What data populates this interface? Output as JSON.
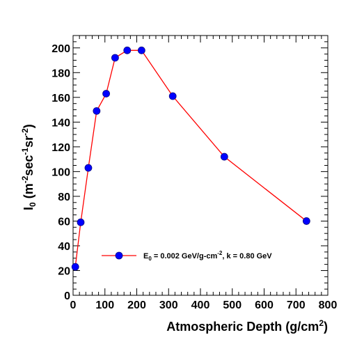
{
  "chart_data": {
    "type": "line",
    "xlabel": {
      "main": "Atmospheric Depth (g/cm",
      "sup": "2",
      "tail": ")"
    },
    "ylabel": {
      "base": "I",
      "sub": "0",
      "rest": " (m",
      "sup1": "-2",
      "mid1": "sec",
      "sup2": "-1",
      "mid2": "sr",
      "sup3": "-2",
      "end": ")"
    },
    "xlim": [
      0,
      800
    ],
    "ylim": [
      0,
      210
    ],
    "x_ticks": [
      0,
      100,
      200,
      300,
      400,
      500,
      600,
      700,
      800
    ],
    "y_ticks": [
      0,
      20,
      40,
      60,
      80,
      100,
      120,
      140,
      160,
      180,
      200
    ],
    "x_tick_labels": [
      "0",
      "100",
      "200",
      "300",
      "400",
      "500",
      "600",
      "700",
      "800"
    ],
    "y_tick_labels": [
      "0",
      "20",
      "40",
      "60",
      "80",
      "100",
      "120",
      "140",
      "160",
      "180",
      "200"
    ],
    "grid": false,
    "legend_position": "lower-center",
    "series": [
      {
        "legend": {
          "a": "E",
          "sub": "0",
          "b": " = 0.002 GeV/g-cm",
          "sup": "-2",
          "c": ", k = 0.80 GeV"
        },
        "line_color": "#ff0000",
        "marker_color": "#0000ff",
        "x": [
          7,
          24,
          48,
          74,
          104,
          132,
          170,
          215,
          313,
          475,
          733
        ],
        "y": [
          23,
          59,
          103,
          149,
          163,
          192,
          198,
          198,
          161,
          112,
          60
        ]
      }
    ]
  }
}
